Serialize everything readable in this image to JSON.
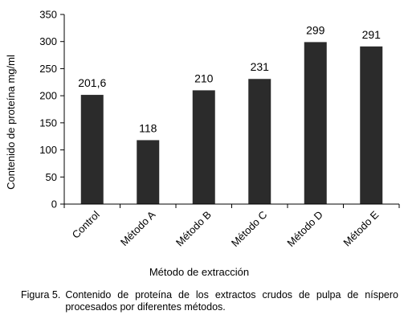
{
  "chart_data": {
    "type": "bar",
    "categories": [
      "Control",
      "Método A",
      "Método B",
      "Método C",
      "Método D",
      "Método E"
    ],
    "values": [
      201.6,
      118,
      210,
      231,
      299,
      291
    ],
    "data_labels": [
      "201,6",
      "118",
      "210",
      "231",
      "299",
      "291"
    ],
    "xlabel": "Método de extracción",
    "ylabel": "Contenido de proteína mg/ml",
    "ylim": [
      0,
      350
    ],
    "yticks": [
      0,
      50,
      100,
      150,
      200,
      250,
      300,
      350
    ],
    "grid": false,
    "legend": "none",
    "bar_color": "#2b2b2b"
  },
  "caption": {
    "number": "Figura 5.",
    "text": "Contenido de proteína de los extractos crudos de pulpa de níspero procesados por diferentes métodos."
  }
}
